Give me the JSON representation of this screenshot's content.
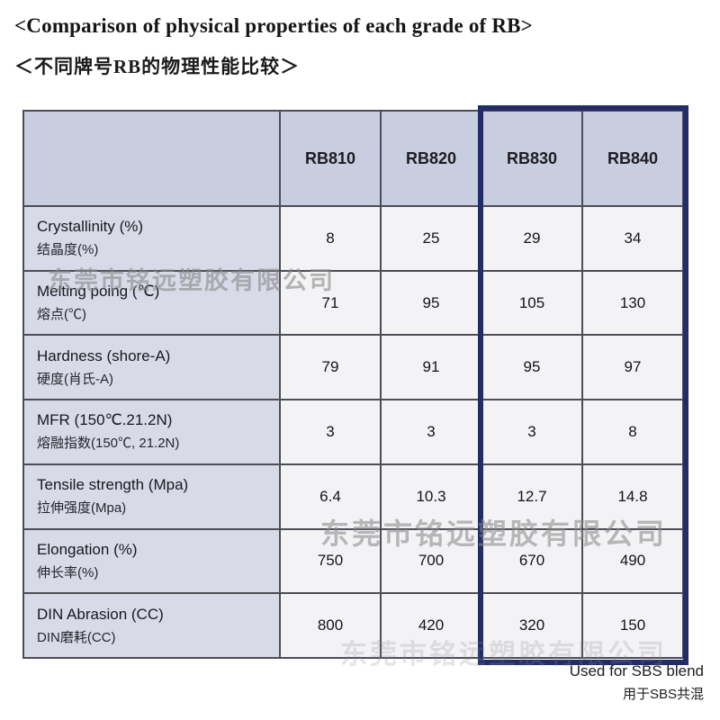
{
  "page": {
    "title_en": "<Comparison of physical properties of each grade of RB>",
    "title_zh": "＜不同牌号RB的物理性能比较＞"
  },
  "table": {
    "corner_label": "",
    "columns": [
      "RB810",
      "RB820",
      "RB830",
      "RB840"
    ],
    "rows": [
      {
        "label_en": "Crystallinity (%)",
        "label_zh": "结晶度(%)",
        "values": [
          "8",
          "25",
          "29",
          "34"
        ]
      },
      {
        "label_en": "Melting poing (℃)",
        "label_zh": "熔点(℃)",
        "values": [
          "71",
          "95",
          "105",
          "130"
        ]
      },
      {
        "label_en": "Hardness (shore-A)",
        "label_zh": "硬度(肖氏-A)",
        "values": [
          "79",
          "91",
          "95",
          "97"
        ]
      },
      {
        "label_en": "MFR (150℃.21.2N)",
        "label_zh": "熔融指数(150℃, 21.2N)",
        "values": [
          "3",
          "3",
          "3",
          "8"
        ]
      },
      {
        "label_en": "Tensile strength (Mpa)",
        "label_zh": "拉伸强度(Mpa)",
        "values": [
          "6.4",
          "10.3",
          "12.7",
          "14.8"
        ]
      },
      {
        "label_en": "Elongation (%)",
        "label_zh": "伸长率(%)",
        "values": [
          "750",
          "700",
          "670",
          "490"
        ]
      },
      {
        "label_en": "DIN Abrasion (CC)",
        "label_zh": "DIN磨耗(CC)",
        "values": [
          "800",
          "420",
          "320",
          "150"
        ]
      }
    ],
    "highlighted_columns": [
      "RB830",
      "RB840"
    ]
  },
  "watermark": "东莞市铭远塑胶有限公司",
  "footnote": {
    "en": "Used for SBS blend",
    "zh": "用于SBS共混"
  },
  "colors": {
    "header_bg": "#c8cddf",
    "property_bg": "#d8dae8",
    "value_bg": "#f3f3f6",
    "grid_line": "#4d4d55",
    "highlight_border": "#222d68"
  }
}
